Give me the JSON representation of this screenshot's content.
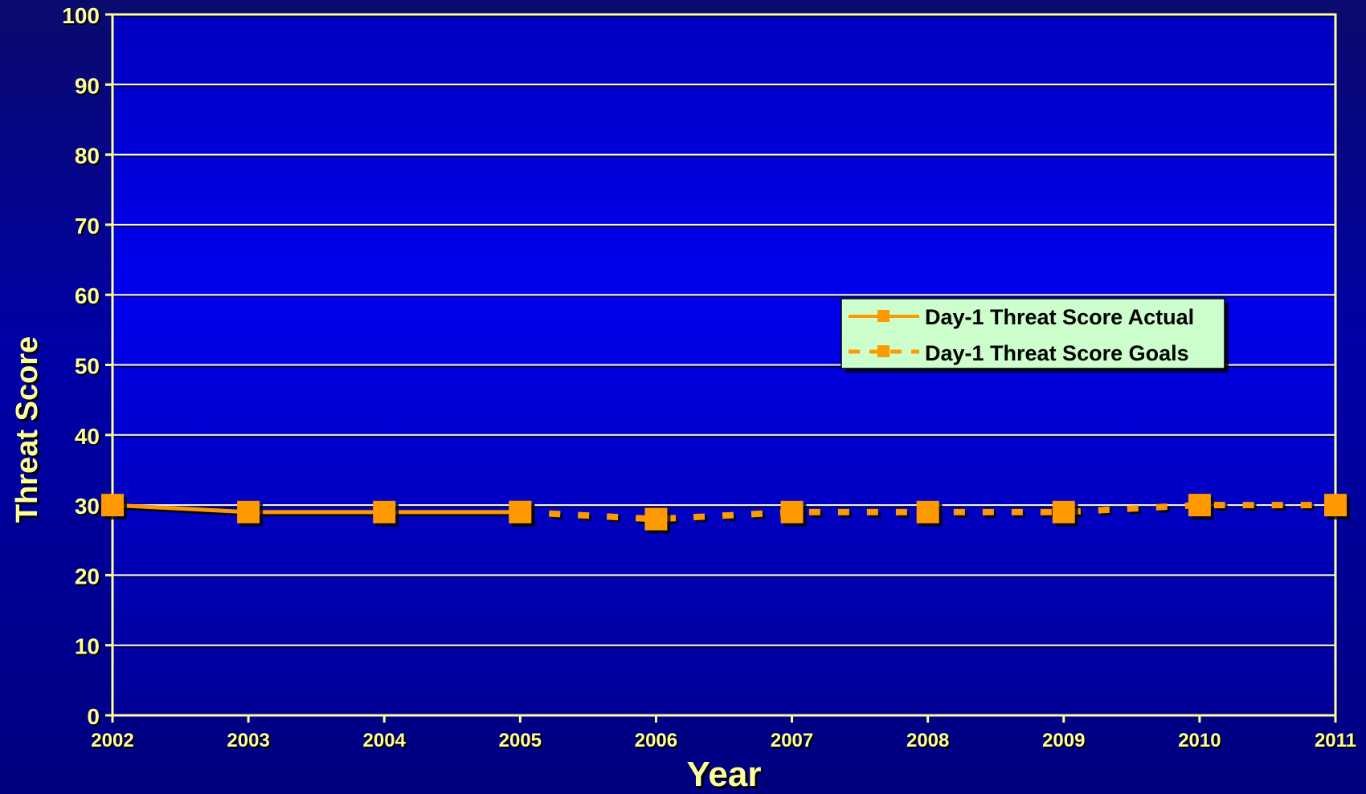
{
  "chart_data": {
    "type": "line",
    "title": "",
    "xlabel": "Year",
    "ylabel": "Threat Score",
    "x": [
      2002,
      2003,
      2004,
      2005,
      2006,
      2007,
      2008,
      2009,
      2010,
      2011
    ],
    "ylim": [
      0,
      100
    ],
    "yticks": [
      0,
      10,
      20,
      30,
      40,
      50,
      60,
      70,
      80,
      90,
      100
    ],
    "grid": true,
    "legend_position": "center-right",
    "series": [
      {
        "name": "Day-1 Threat Score Actual",
        "style": "solid",
        "x": [
          2002,
          2003,
          2004,
          2005
        ],
        "values": [
          30,
          29,
          29,
          29
        ]
      },
      {
        "name": "Day-1 Threat Score Goals",
        "style": "dotted",
        "x": [
          2005,
          2006,
          2007,
          2008,
          2009,
          2010,
          2011
        ],
        "values": [
          29,
          28,
          29,
          29,
          29,
          30,
          30
        ]
      }
    ],
    "colors": {
      "series": "#ff9900",
      "axis": "#ffff99",
      "grid": "#ffffff",
      "text": "#ffff99",
      "legend_bg": "#ccffcc",
      "plot_bg_top": "#0000c8",
      "plot_bg_bottom": "#000090"
    }
  }
}
